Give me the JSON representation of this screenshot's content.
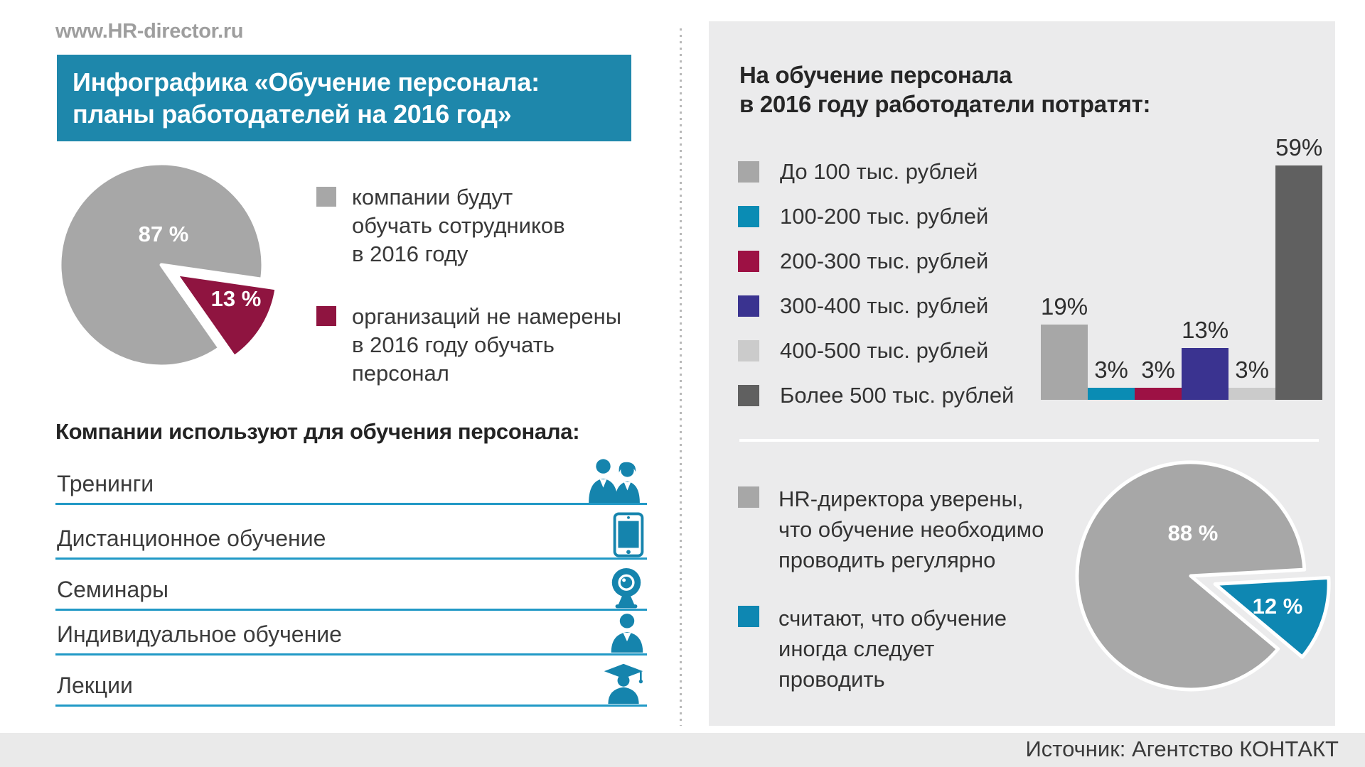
{
  "page": {
    "site_url": "www.HR-director.ru",
    "source": "Источник: Агентство КОНТАКТ"
  },
  "title": {
    "line1": "Инфографика «Обучение персонала:",
    "line2": "планы работодателей на 2016 год»"
  },
  "colors": {
    "header_blue": "#1e87ab",
    "accent_blue": "#1584ad",
    "underline_blue": "#2199c6",
    "panel_bg": "#ebebec",
    "footer_bg": "#eaeaea",
    "pie_gray": "#a7a7a7",
    "maroon": "#8f1440",
    "teal": "#0a8cb4",
    "indigo": "#3a3390",
    "light_gray": "#cbcbcb",
    "dark_gray": "#606060"
  },
  "methods": {
    "heading": "Компании используют для обучения персонала:",
    "items": [
      {
        "label": "Тренинги",
        "icon": "business-people-icon"
      },
      {
        "label": "Дистанционное обучение",
        "icon": "tablet-icon"
      },
      {
        "label": "Семинары",
        "icon": "webcam-icon"
      },
      {
        "label": "Индивидуальное обучение",
        "icon": "person-icon"
      },
      {
        "label": "Лекции",
        "icon": "graduate-icon"
      }
    ]
  },
  "plans_legend": {
    "items": [
      {
        "lines": [
          "компании будут",
          "обучать сотрудников",
          "в 2016 году"
        ]
      },
      {
        "lines": [
          "организаций не намерены",
          "в 2016 году обучать",
          "персонал"
        ]
      }
    ]
  },
  "budget": {
    "heading_line1": "На обучение персонала",
    "heading_line2": "в 2016 году работодатели потратят:"
  },
  "frequency_legend": {
    "items": [
      {
        "lines": [
          "HR-директора уверены,",
          "что обучение необходимо",
          "проводить регулярно"
        ]
      },
      {
        "lines": [
          "считают, что обучение",
          "иногда следует",
          "проводить"
        ]
      }
    ]
  },
  "chart_data": [
    {
      "id": "plans_pie",
      "type": "pie",
      "title": "Инфографика «Обучение персонала: планы работодателей на 2016 год»",
      "slices": [
        {
          "label": "компании будут обучать сотрудников в 2016 году",
          "value": 87,
          "display": "87 %",
          "color": "#a7a7a7"
        },
        {
          "label": "организаций не намерены в 2016 году обучать персонал",
          "value": 13,
          "display": "13 %",
          "color": "#8f1440"
        }
      ],
      "legend_position": "right"
    },
    {
      "id": "budget_bar",
      "type": "bar",
      "title": "На обучение персонала в 2016 году работодатели потратят:",
      "categories": [
        "До 100 тыс. рублей",
        "100-200 тыс. рублей",
        "200-300 тыс. рублей",
        "300-400 тыс. рублей",
        "400-500 тыс. рублей",
        "Более 500 тыс. рублей"
      ],
      "values": [
        19,
        3,
        3,
        13,
        3,
        59
      ],
      "labels": [
        "19%",
        "3%",
        "3%",
        "13%",
        "3%",
        "59%"
      ],
      "colors": [
        "#a7a7a7",
        "#0a8cb4",
        "#9d1144",
        "#3a3390",
        "#cbcbcb",
        "#606060"
      ],
      "ylim": [
        0,
        60
      ],
      "grid": false,
      "legend_position": "left"
    },
    {
      "id": "frequency_pie",
      "type": "pie",
      "title": "",
      "slices": [
        {
          "label": "HR-директора уверены, что обучение необходимо проводить регулярно",
          "value": 88,
          "display": "88 %",
          "color": "#a7a7a7"
        },
        {
          "label": "считают, что обучение иногда следует проводить",
          "value": 12,
          "display": "12 %",
          "color": "#0e87b2"
        }
      ],
      "legend_position": "left"
    }
  ]
}
